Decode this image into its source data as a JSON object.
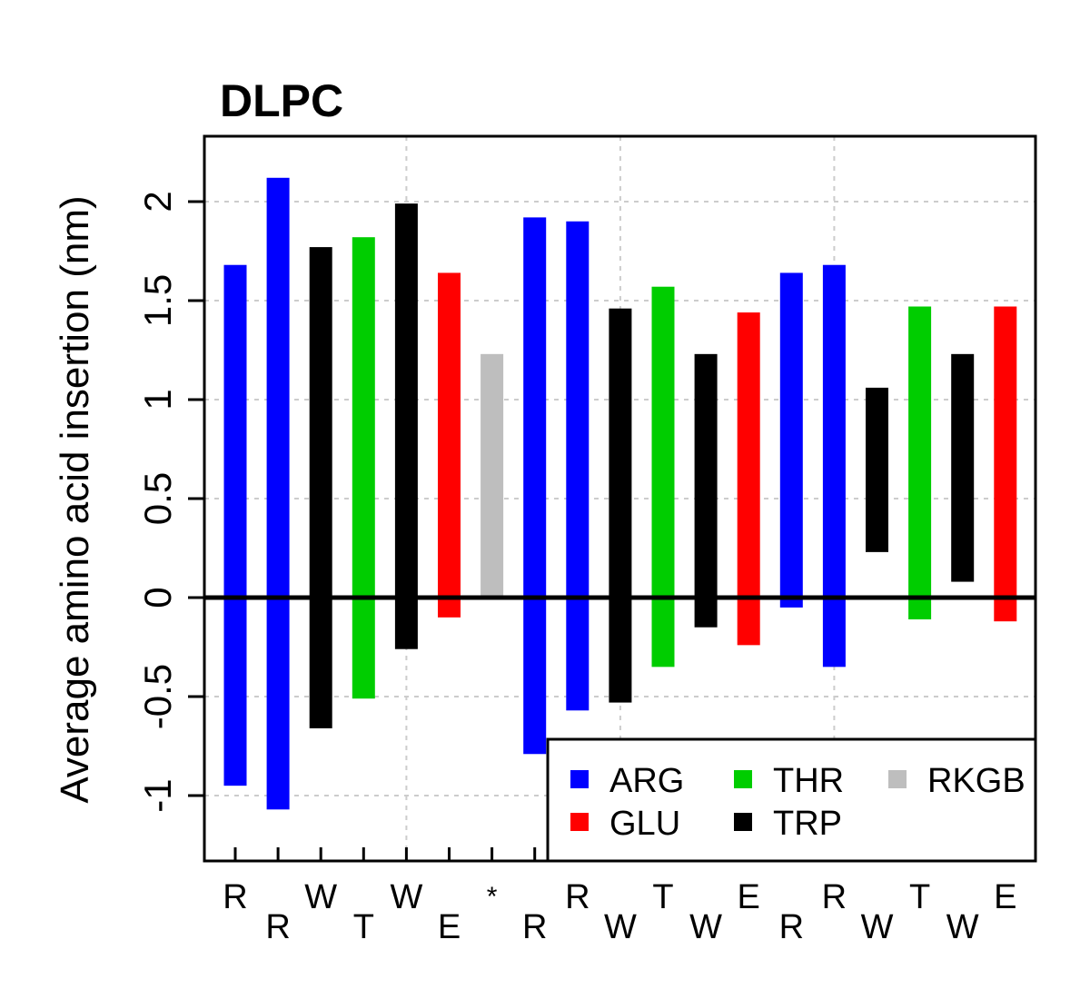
{
  "chart_data": {
    "type": "bar",
    "subtype": "floating-range",
    "title": "DLPC",
    "xlabel": "",
    "ylabel": "Average amino acid insertion (nm)",
    "ylim": [
      -1.33,
      2.33
    ],
    "yticks": [
      -1,
      -0.5,
      0,
      0.5,
      1,
      1.5,
      2
    ],
    "ytick_labels": [
      "-1",
      "-0.5",
      "0",
      "0.5",
      "1",
      "1.5",
      "2"
    ],
    "grid": true,
    "zero_line": true,
    "legend_position": "bottom-right",
    "categories": [
      "R",
      "R",
      "W",
      "T",
      "W",
      "E",
      "*",
      "R",
      "R",
      "W",
      "T",
      "W",
      "E",
      "R",
      "R",
      "W",
      "T",
      "W",
      "E"
    ],
    "groups": [
      "ARG",
      "ARG",
      "TRP",
      "THR",
      "TRP",
      "GLU",
      "RKGB",
      "ARG",
      "ARG",
      "TRP",
      "THR",
      "TRP",
      "GLU",
      "ARG",
      "ARG",
      "TRP",
      "THR",
      "TRP",
      "GLU"
    ],
    "low": [
      -0.95,
      -1.07,
      -0.66,
      -0.51,
      -0.26,
      -0.1,
      0.0,
      -0.79,
      -0.57,
      -0.53,
      -0.35,
      -0.15,
      -0.24,
      -0.05,
      -0.35,
      0.23,
      -0.11,
      0.08,
      -0.12
    ],
    "high": [
      1.68,
      2.12,
      1.77,
      1.82,
      1.99,
      1.64,
      1.23,
      1.92,
      1.9,
      1.46,
      1.57,
      1.23,
      1.44,
      1.64,
      1.68,
      1.06,
      1.47,
      1.23,
      1.47
    ],
    "legend": [
      {
        "name": "ARG",
        "color": "#0000ff"
      },
      {
        "name": "THR",
        "color": "#00cd00"
      },
      {
        "name": "RKGB",
        "color": "#bebebe"
      },
      {
        "name": "GLU",
        "color": "#ff0000"
      },
      {
        "name": "TRP",
        "color": "#000000"
      }
    ],
    "colors": {
      "ARG": "#0000ff",
      "GLU": "#ff0000",
      "THR": "#00cd00",
      "TRP": "#000000",
      "RKGB": "#bebebe"
    }
  }
}
